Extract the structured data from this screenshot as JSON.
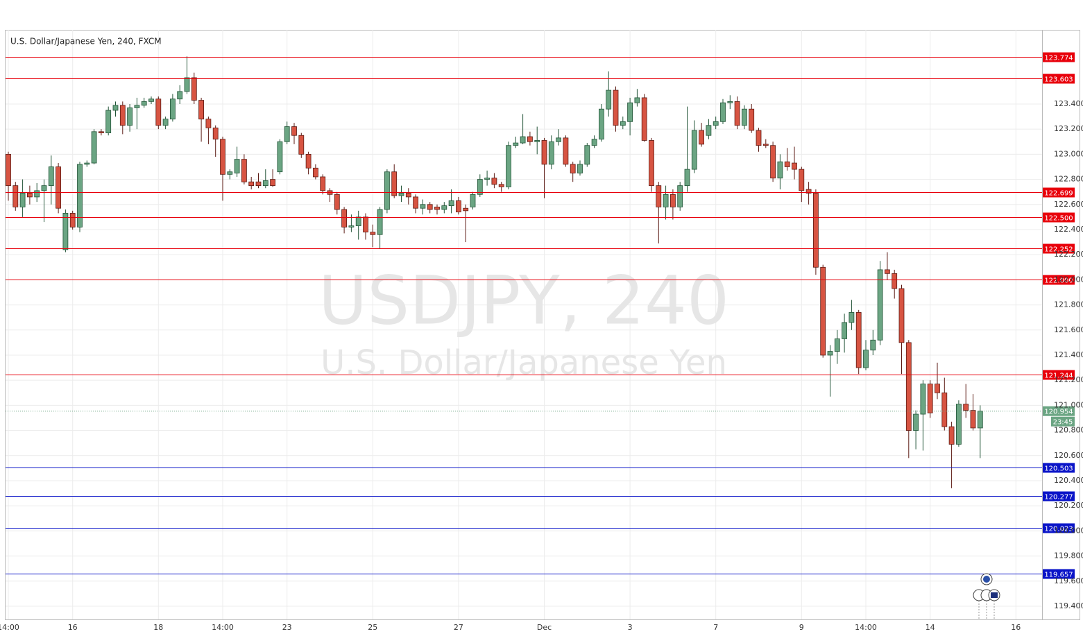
{
  "chart_data": {
    "type": "candlestick",
    "title": "U.S. Dollar/Japanese Yen, 240, FXCM",
    "watermark": [
      "USDJPY, 240",
      "U.S. Dollar/Japanese Yen"
    ],
    "categories": [
      "14:00",
      null,
      null,
      null,
      null,
      null,
      null,
      null,
      null,
      "16",
      null,
      null,
      null,
      null,
      null,
      null,
      null,
      null,
      null,
      null,
      null,
      "18",
      null,
      null,
      null,
      null,
      null,
      null,
      null,
      null,
      "14:00",
      null,
      null,
      null,
      null,
      null,
      null,
      null,
      null,
      "23",
      null,
      null,
      null,
      null,
      null,
      null,
      null,
      null,
      null,
      null,
      null,
      "25",
      null,
      null,
      null,
      null,
      null,
      null,
      null,
      null,
      null,
      null,
      null,
      "27",
      null,
      null,
      null,
      null,
      null,
      null,
      null,
      null,
      null,
      null,
      null,
      "Dec",
      null,
      null,
      null,
      null,
      null,
      null,
      null,
      null,
      null,
      null,
      null,
      "3",
      null,
      null,
      null,
      null,
      null,
      null,
      null,
      null,
      null,
      null,
      null,
      "7",
      null,
      null,
      null,
      null,
      null,
      null,
      null,
      null,
      null,
      null,
      null,
      "9",
      null,
      null,
      null,
      null,
      null,
      null,
      null,
      null,
      "14:00",
      null,
      null,
      null,
      null,
      null,
      null,
      null,
      null,
      "14",
      null,
      null,
      null,
      null,
      null,
      null,
      null,
      null,
      null,
      null,
      null,
      "16"
    ],
    "open": [
      123.0,
      122.75,
      122.58,
      122.69,
      122.66,
      122.71,
      122.75,
      122.9,
      122.24,
      122.53,
      122.42,
      122.92,
      122.93,
      123.18,
      123.17,
      123.35,
      123.39,
      123.23,
      123.37,
      123.39,
      123.42,
      123.44,
      123.23,
      123.28,
      123.44,
      123.5,
      123.61,
      123.43,
      123.28,
      123.21,
      123.12,
      122.84,
      122.85,
      122.96,
      122.78,
      122.78,
      122.75,
      122.8,
      122.86,
      123.1,
      123.22,
      123.15,
      123.0,
      122.89,
      122.82,
      122.71,
      122.68,
      122.56,
      122.42,
      122.43,
      122.5,
      122.38,
      122.36,
      122.56,
      122.86,
      122.67,
      122.69,
      122.66,
      122.57,
      122.6,
      122.58,
      122.56,
      122.59,
      122.63,
      122.57,
      122.58,
      122.68,
      122.8,
      122.81,
      122.76,
      122.74,
      123.07,
      123.09,
      123.14,
      123.1,
      123.11,
      122.92,
      123.1,
      123.13,
      122.92,
      122.85,
      122.92,
      123.07,
      123.12,
      123.36,
      123.51,
      123.23,
      123.26,
      123.41,
      123.45,
      123.11,
      122.75,
      122.58,
      122.68,
      122.58,
      122.75,
      122.88,
      123.19,
      123.15,
      123.23,
      123.26,
      123.41,
      123.42,
      123.23,
      123.36,
      123.19,
      123.08,
      123.07,
      122.81,
      122.94,
      122.93,
      122.88,
      122.72,
      122.69,
      122.1,
      121.4,
      121.43,
      121.53,
      121.66,
      121.74,
      121.3,
      121.44,
      121.52,
      122.08,
      122.05,
      121.93,
      121.5,
      120.8,
      120.93,
      121.17,
      121.17,
      121.1,
      120.83,
      120.69,
      121.01,
      120.96,
      120.82,
      null,
      null,
      null,
      null,
      null
    ],
    "high": [
      123.02,
      122.78,
      122.8,
      122.75,
      122.77,
      122.8,
      122.99,
      122.93,
      122.56,
      122.55,
      122.94,
      122.95,
      123.2,
      123.2,
      123.38,
      123.42,
      123.42,
      123.4,
      123.45,
      123.45,
      123.46,
      123.46,
      123.3,
      123.48,
      123.55,
      123.78,
      123.65,
      123.45,
      123.3,
      123.23,
      123.14,
      122.88,
      123.06,
      123.0,
      122.82,
      122.85,
      122.88,
      122.88,
      123.12,
      123.26,
      123.25,
      123.17,
      123.02,
      122.92,
      122.84,
      122.73,
      122.7,
      122.58,
      122.52,
      122.55,
      122.53,
      122.44,
      122.58,
      122.88,
      122.92,
      122.75,
      122.73,
      122.68,
      122.64,
      122.62,
      122.6,
      122.62,
      122.72,
      122.66,
      122.6,
      122.7,
      122.84,
      122.87,
      122.85,
      122.78,
      123.1,
      123.14,
      123.32,
      123.18,
      123.22,
      123.13,
      123.15,
      123.2,
      123.15,
      122.94,
      122.95,
      123.09,
      123.15,
      123.4,
      123.66,
      123.54,
      123.3,
      123.45,
      123.52,
      123.48,
      123.13,
      122.78,
      122.75,
      122.72,
      122.78,
      123.38,
      123.27,
      123.25,
      123.28,
      123.3,
      123.44,
      123.47,
      123.46,
      123.39,
      123.4,
      123.21,
      123.12,
      123.1,
      123.0,
      123.05,
      123.06,
      122.9,
      122.78,
      122.72,
      122.12,
      121.48,
      121.6,
      121.73,
      121.84,
      121.76,
      121.52,
      121.6,
      122.15,
      122.22,
      122.08,
      121.96,
      121.52,
      120.96,
      121.2,
      121.2,
      121.34,
      121.22,
      120.87,
      121.04,
      121.17,
      121.09,
      121.0,
      null,
      null,
      null,
      null,
      null
    ],
    "low": [
      122.63,
      122.55,
      122.5,
      122.6,
      122.62,
      122.46,
      122.6,
      122.53,
      122.22,
      122.4,
      122.38,
      122.9,
      122.92,
      123.15,
      123.15,
      123.3,
      123.16,
      123.18,
      123.2,
      123.37,
      123.4,
      123.2,
      123.2,
      123.26,
      123.4,
      123.48,
      123.4,
      123.1,
      123.08,
      122.98,
      122.63,
      122.8,
      122.82,
      122.76,
      122.72,
      122.73,
      122.73,
      122.74,
      122.84,
      123.08,
      123.08,
      122.97,
      122.84,
      122.8,
      122.68,
      122.62,
      122.52,
      122.37,
      122.38,
      122.32,
      122.32,
      122.26,
      122.25,
      122.53,
      122.65,
      122.62,
      122.6,
      122.53,
      122.52,
      122.53,
      122.52,
      122.53,
      122.53,
      122.52,
      122.3,
      122.56,
      122.66,
      122.75,
      122.73,
      122.7,
      122.72,
      123.05,
      123.08,
      123.07,
      123.0,
      122.65,
      122.88,
      123.07,
      122.9,
      122.78,
      122.83,
      122.9,
      123.05,
      123.1,
      123.3,
      123.18,
      123.2,
      123.15,
      123.38,
      123.1,
      122.7,
      122.29,
      122.48,
      122.48,
      122.55,
      122.7,
      122.85,
      123.06,
      123.12,
      123.2,
      123.24,
      123.36,
      123.2,
      123.2,
      123.17,
      123.02,
      123.05,
      122.78,
      122.72,
      122.87,
      122.8,
      122.62,
      122.6,
      122.04,
      121.38,
      121.07,
      121.33,
      121.42,
      121.6,
      121.25,
      121.28,
      121.4,
      121.48,
      122.0,
      121.85,
      121.25,
      120.58,
      120.65,
      120.64,
      120.9,
      121.05,
      120.8,
      120.34,
      120.67,
      120.9,
      120.8,
      120.58,
      null,
      null,
      null,
      null,
      null
    ],
    "close": [
      122.75,
      122.58,
      122.69,
      122.66,
      122.71,
      122.75,
      122.9,
      122.57,
      122.53,
      122.42,
      122.92,
      122.93,
      123.18,
      123.17,
      123.35,
      123.39,
      123.23,
      123.37,
      123.39,
      123.42,
      123.44,
      123.23,
      123.28,
      123.44,
      123.5,
      123.61,
      123.43,
      123.28,
      123.21,
      123.12,
      122.84,
      122.86,
      122.96,
      122.78,
      122.75,
      122.75,
      122.79,
      122.75,
      123.1,
      123.22,
      123.15,
      123.0,
      122.89,
      122.82,
      122.71,
      122.68,
      122.56,
      122.42,
      122.43,
      122.5,
      122.38,
      122.36,
      122.56,
      122.86,
      122.67,
      122.69,
      122.66,
      122.57,
      122.6,
      122.56,
      122.56,
      122.59,
      122.63,
      122.54,
      122.55,
      122.68,
      122.8,
      122.81,
      122.76,
      122.74,
      123.07,
      123.09,
      123.14,
      123.1,
      123.11,
      122.92,
      123.1,
      123.13,
      122.92,
      122.85,
      122.92,
      123.07,
      123.12,
      123.36,
      123.51,
      123.23,
      123.26,
      123.41,
      123.45,
      123.11,
      122.75,
      122.58,
      122.68,
      122.58,
      122.75,
      122.88,
      123.19,
      123.08,
      123.23,
      123.26,
      123.41,
      123.42,
      123.23,
      123.36,
      123.19,
      123.07,
      123.07,
      122.81,
      122.94,
      122.9,
      122.88,
      122.71,
      122.69,
      122.1,
      121.4,
      121.43,
      121.53,
      121.66,
      121.74,
      121.3,
      121.44,
      121.52,
      122.08,
      122.05,
      121.93,
      121.5,
      120.8,
      120.93,
      121.17,
      120.94,
      121.1,
      120.83,
      120.69,
      121.01,
      120.96,
      120.82,
      120.954,
      null,
      null,
      null,
      null,
      null
    ],
    "up_color": "#6ba583",
    "down_color": "#d75442",
    "ylim": [
      119.295,
      123.991
    ],
    "yticks": [
      {
        "value": 119.4,
        "label": "119.400"
      },
      {
        "value": 119.6,
        "label": "119.600"
      },
      {
        "value": 119.8,
        "label": "119.800"
      },
      {
        "value": 120.0,
        "label": "120.000"
      },
      {
        "value": 120.2,
        "label": "120.200"
      },
      {
        "value": 120.4,
        "label": "120.400"
      },
      {
        "value": 120.6,
        "label": "120.600"
      },
      {
        "value": 120.8,
        "label": "120.800"
      },
      {
        "value": 121.0,
        "label": "121.000"
      },
      {
        "value": 121.2,
        "label": "121.200"
      },
      {
        "value": 121.4,
        "label": "121.400"
      },
      {
        "value": 121.6,
        "label": "121.600"
      },
      {
        "value": 121.8,
        "label": "121.800"
      },
      {
        "value": 122.0,
        "label": "122.000"
      },
      {
        "value": 122.2,
        "label": "122.200"
      },
      {
        "value": 122.4,
        "label": "122.400"
      },
      {
        "value": 122.6,
        "label": "122.600"
      },
      {
        "value": 122.8,
        "label": "122.800"
      },
      {
        "value": 123.0,
        "label": "123.000"
      },
      {
        "value": 123.2,
        "label": "123.200"
      },
      {
        "value": 123.4,
        "label": "123.400"
      }
    ],
    "grid": true,
    "levels": [
      {
        "value": 123.774,
        "color": "#e8000b"
      },
      {
        "value": 123.603,
        "color": "#e8000b"
      },
      {
        "value": 122.699,
        "color": "#e8000b"
      },
      {
        "value": 122.5,
        "label": "122.500",
        "color": "#e8000b"
      },
      {
        "value": 122.252,
        "color": "#e8000b"
      },
      {
        "value": 122.0,
        "label": "122.000",
        "color": "#e8000b"
      },
      {
        "value": 121.244,
        "color": "#e8000b"
      },
      {
        "value": 120.503,
        "color": "#0a14c8"
      },
      {
        "value": 120.277,
        "color": "#0a14c8"
      },
      {
        "value": 120.023,
        "color": "#0a14c8"
      },
      {
        "value": 119.657,
        "color": "#0a14c8"
      }
    ],
    "last_price": {
      "value": 120.954,
      "time": "23:45",
      "color": "#6ba583"
    }
  }
}
